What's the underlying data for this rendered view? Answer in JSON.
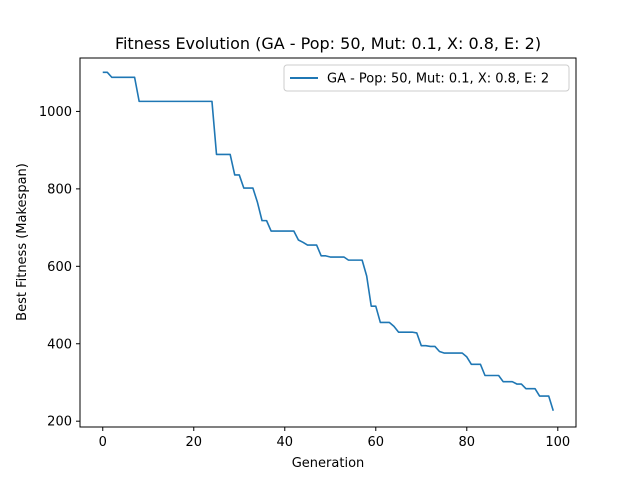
{
  "chart_data": {
    "type": "line",
    "title": "Fitness Evolution (GA - Pop: 50, Mut: 0.1, X: 0.8, E: 2)",
    "xlabel": "Generation",
    "ylabel": "Best Fitness (Makespan)",
    "xlim": [
      -5,
      104
    ],
    "ylim": [
      185,
      1138
    ],
    "xticks": [
      0,
      20,
      40,
      60,
      80,
      100
    ],
    "yticks": [
      200,
      400,
      600,
      800,
      1000
    ],
    "grid": false,
    "legend_position": "top-right",
    "series": [
      {
        "name": "GA - Pop: 50, Mut: 0.1, X: 0.8, E: 2",
        "color": "#1f77b4",
        "x": [
          0,
          1,
          2,
          3,
          4,
          5,
          6,
          7,
          8,
          9,
          10,
          11,
          12,
          13,
          14,
          15,
          16,
          17,
          18,
          19,
          20,
          21,
          22,
          23,
          24,
          25,
          26,
          27,
          28,
          29,
          30,
          31,
          32,
          33,
          34,
          35,
          36,
          37,
          38,
          39,
          40,
          41,
          42,
          43,
          44,
          45,
          46,
          47,
          48,
          49,
          50,
          51,
          52,
          53,
          54,
          55,
          56,
          57,
          58,
          59,
          60,
          61,
          62,
          63,
          64,
          65,
          66,
          67,
          68,
          69,
          70,
          71,
          72,
          73,
          74,
          75,
          76,
          77,
          78,
          79,
          80,
          81,
          82,
          83,
          84,
          85,
          86,
          87,
          88,
          89,
          90,
          91,
          92,
          93,
          94,
          95,
          96,
          97,
          98,
          99
        ],
        "y": [
          1101,
          1101,
          1088,
          1088,
          1088,
          1088,
          1088,
          1088,
          1026,
          1026,
          1026,
          1026,
          1026,
          1026,
          1026,
          1026,
          1026,
          1026,
          1026,
          1026,
          1026,
          1026,
          1026,
          1026,
          1026,
          889,
          889,
          889,
          889,
          836,
          836,
          802,
          802,
          802,
          765,
          718,
          718,
          691,
          691,
          691,
          691,
          691,
          691,
          668,
          662,
          655,
          655,
          655,
          627,
          627,
          624,
          624,
          624,
          624,
          616,
          616,
          616,
          616,
          575,
          497,
          497,
          455,
          455,
          455,
          445,
          430,
          430,
          430,
          430,
          428,
          395,
          395,
          393,
          393,
          380,
          376,
          376,
          376,
          376,
          376,
          366,
          347,
          347,
          347,
          318,
          318,
          318,
          318,
          302,
          302,
          302,
          296,
          296,
          284,
          284,
          284,
          265,
          265,
          265,
          227
        ]
      }
    ]
  }
}
